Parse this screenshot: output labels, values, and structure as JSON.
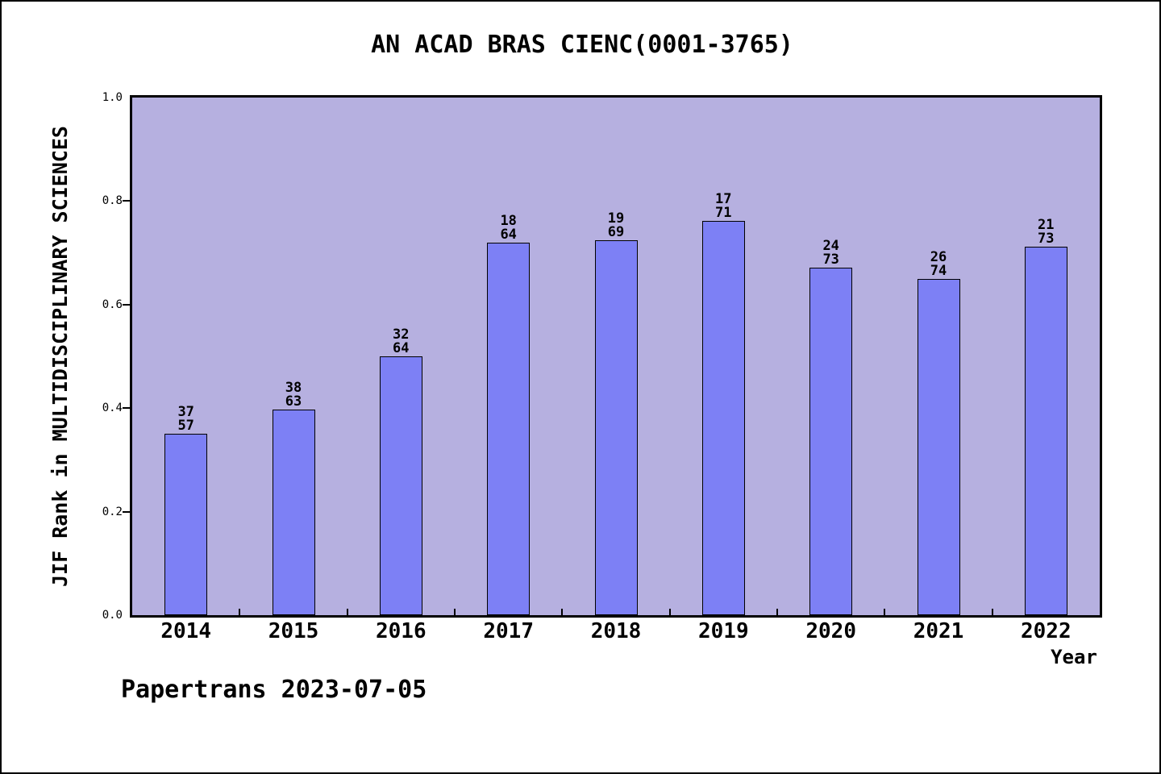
{
  "title": "AN ACAD BRAS CIENC(0001-3765)",
  "footer": "Papertrans 2023-07-05",
  "chart_data": {
    "type": "bar",
    "title": "AN ACAD BRAS CIENC(0001-3765)",
    "xlabel": "Year",
    "ylabel": "JIF Rank in MULTIDISCIPLINARY SCIENCES",
    "ylim": [
      0.0,
      1.0
    ],
    "ytick_labels": [
      "0.0",
      "0.2",
      "0.4",
      "0.6",
      "0.8",
      "1.0"
    ],
    "grid": false,
    "legend": false,
    "categories": [
      "2014",
      "2015",
      "2016",
      "2017",
      "2018",
      "2019",
      "2020",
      "2021",
      "2022"
    ],
    "bars": [
      {
        "year": "2014",
        "rank": 37,
        "total": 57,
        "value": 0.351
      },
      {
        "year": "2015",
        "rank": 38,
        "total": 63,
        "value": 0.397
      },
      {
        "year": "2016",
        "rank": 32,
        "total": 64,
        "value": 0.5
      },
      {
        "year": "2017",
        "rank": 18,
        "total": 64,
        "value": 0.719
      },
      {
        "year": "2018",
        "rank": 19,
        "total": 69,
        "value": 0.725
      },
      {
        "year": "2019",
        "rank": 17,
        "total": 71,
        "value": 0.761
      },
      {
        "year": "2020",
        "rank": 24,
        "total": 73,
        "value": 0.671
      },
      {
        "year": "2021",
        "rank": 26,
        "total": 74,
        "value": 0.649
      },
      {
        "year": "2022",
        "rank": 21,
        "total": 73,
        "value": 0.712
      }
    ],
    "colors": {
      "bar_fill": "#7d80f5",
      "bar_edge": "#000000",
      "plot_bg": "#b6b0e0",
      "text": "#000000"
    }
  }
}
